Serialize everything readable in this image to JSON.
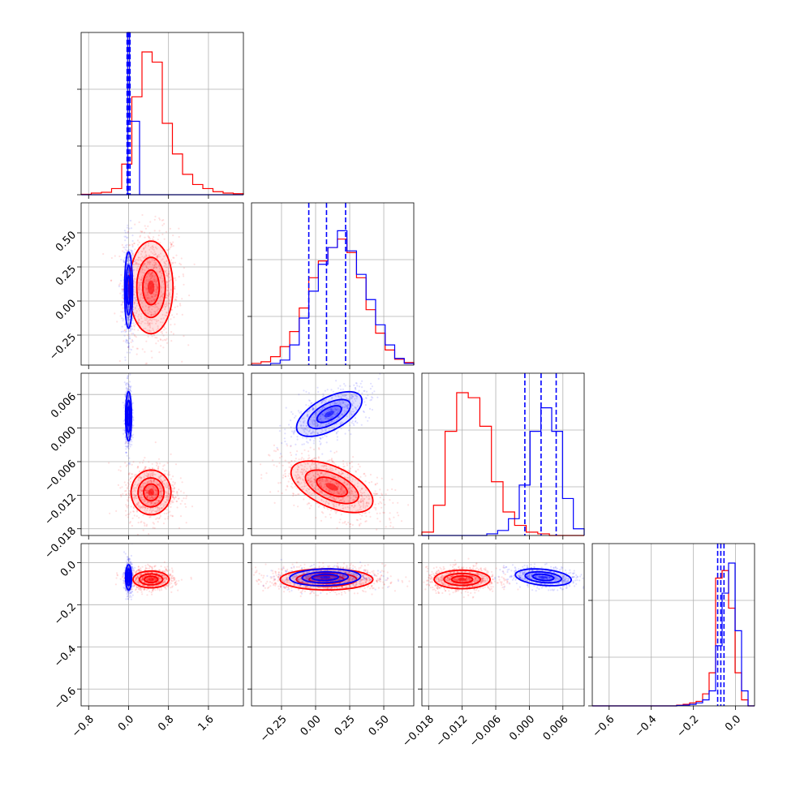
{
  "chart_data": {
    "type": "corner",
    "grid": true,
    "colors": {
      "series_a": "#ff0000",
      "series_b": "#0000ff"
    },
    "series": [
      {
        "color": "red"
      },
      {
        "color": "blue"
      }
    ],
    "parameters": [
      {
        "range": [
          -0.95,
          2.3
        ],
        "ticks": [
          -0.8,
          0.0,
          0.8,
          1.6
        ],
        "tick_labels": [
          "−0.8",
          "0.0",
          "0.8",
          "1.6"
        ]
      },
      {
        "range": [
          -0.47,
          0.72
        ],
        "ticks": [
          -0.25,
          0.0,
          0.25,
          0.5
        ],
        "tick_labels": [
          "−0.25",
          "0.00",
          "0.25",
          "0.50"
        ]
      },
      {
        "range": [
          -0.0192,
          0.0098
        ],
        "ticks": [
          -0.018,
          -0.012,
          -0.006,
          0.0,
          0.006
        ],
        "tick_labels": [
          "−0.018",
          "−0.012",
          "−0.006",
          "0.000",
          "0.006"
        ]
      },
      {
        "range": [
          -0.68,
          0.09
        ],
        "ticks": [
          -0.6,
          -0.4,
          -0.2,
          0.0
        ],
        "tick_labels": [
          "−0.6",
          "−0.4",
          "−0.2",
          "0.0"
        ]
      }
    ],
    "marginal_quantiles_blue": [
      [
        -0.03,
        0.0,
        0.03
      ],
      [
        -0.05,
        0.08,
        0.22
      ],
      [
        -0.0008,
        0.0021,
        0.0048
      ],
      [
        -0.085,
        -0.07,
        -0.055
      ]
    ],
    "histograms": [
      {
        "red": {
          "x0": -0.95,
          "x1": 2.3,
          "counts": [
            0.2,
            0.8,
            1.2,
            3,
            15,
            48,
            70,
            65,
            35,
            20,
            10,
            5,
            3,
            1.5,
            0.8,
            0.5
          ]
        },
        "blue": {
          "x0": -0.95,
          "x1": 2.3,
          "counts": [
            0,
            0,
            0,
            0,
            0,
            0,
            0,
            0,
            0,
            0,
            0,
            0,
            0,
            0,
            0,
            0
          ],
          "spike": {
            "from": 0.0,
            "to": 0.22,
            "height": 36,
            "peak": 100
          }
        }
      },
      {
        "red": {
          "x0": -0.47,
          "x1": 0.72,
          "counts": [
            1,
            2,
            5,
            11,
            20,
            34,
            52,
            62,
            70,
            75,
            67,
            52,
            33,
            19,
            9,
            3.5,
            1.5
          ]
        },
        "blue": {
          "x0": -0.47,
          "x1": 0.72,
          "counts": [
            0,
            0,
            1,
            3,
            12,
            28,
            44,
            60,
            70,
            80,
            68,
            54,
            39,
            24,
            12,
            4,
            1
          ]
        }
      },
      {
        "red": {
          "x0": -0.0192,
          "x1": 0.0098,
          "counts": [
            2,
            18,
            62,
            85,
            82,
            65,
            32,
            14,
            6,
            2,
            1,
            0,
            0,
            0
          ]
        },
        "blue": {
          "x0": -0.0192,
          "x1": 0.0098,
          "counts": [
            0,
            0,
            0,
            0,
            0,
            0,
            1,
            3,
            10,
            30,
            62,
            76,
            62,
            22,
            4
          ]
        }
      },
      {
        "red": {
          "x0": -0.68,
          "x1": 0.09,
          "counts": [
            0,
            0,
            0,
            0,
            0,
            0,
            0,
            0,
            0,
            0,
            0,
            0,
            0,
            0.5,
            1,
            2,
            3,
            8,
            22,
            85,
            90,
            65,
            22,
            4,
            0
          ]
        },
        "blue": {
          "x0": -0.68,
          "x1": 0.09,
          "counts": [
            0,
            0,
            0,
            0,
            0,
            0,
            0,
            0,
            0,
            0,
            0,
            0,
            0,
            0.3,
            0.5,
            1,
            2,
            4,
            10,
            40,
            75,
            95,
            50,
            10,
            0
          ]
        }
      }
    ],
    "pair_ellipses": [
      {
        "row": 1,
        "col": 0,
        "red": {
          "cx": 0.45,
          "cy": 0.1,
          "sx": 0.22,
          "sy": 0.17,
          "rho": 0.0
        },
        "blue": {
          "cx": 0.0,
          "cy": 0.08,
          "sx": 0.04,
          "sy": 0.14,
          "rho": 0.0
        }
      },
      {
        "row": 2,
        "col": 0,
        "red": {
          "cx": 0.45,
          "cy": -0.0115,
          "sx": 0.2,
          "sy": 0.002,
          "rho": 0.0
        },
        "blue": {
          "cx": 0.0,
          "cy": 0.0021,
          "sx": 0.03,
          "sy": 0.0022,
          "rho": 0.0
        }
      },
      {
        "row": 2,
        "col": 1,
        "red": {
          "cx": 0.12,
          "cy": -0.0105,
          "sx": 0.15,
          "sy": 0.0023,
          "rho": -0.55
        },
        "blue": {
          "cx": 0.1,
          "cy": 0.0025,
          "sx": 0.12,
          "sy": 0.002,
          "rho": 0.6
        }
      },
      {
        "row": 3,
        "col": 0,
        "red": {
          "cx": 0.45,
          "cy": -0.08,
          "sx": 0.18,
          "sy": 0.02,
          "rho": 0.0
        },
        "blue": {
          "cx": 0.0,
          "cy": -0.07,
          "sx": 0.03,
          "sy": 0.03,
          "rho": 0.0
        }
      },
      {
        "row": 3,
        "col": 1,
        "red": {
          "cx": 0.08,
          "cy": -0.08,
          "sx": 0.17,
          "sy": 0.025,
          "rho": 0.0
        },
        "blue": {
          "cx": 0.07,
          "cy": -0.07,
          "sx": 0.13,
          "sy": 0.02,
          "rho": 0.1
        }
      },
      {
        "row": 3,
        "col": 2,
        "red": {
          "cx": -0.012,
          "cy": -0.08,
          "sx": 0.0025,
          "sy": 0.022,
          "rho": 0.0
        },
        "blue": {
          "cx": 0.0025,
          "cy": -0.07,
          "sx": 0.0025,
          "sy": 0.02,
          "rho": -0.3
        }
      }
    ]
  }
}
